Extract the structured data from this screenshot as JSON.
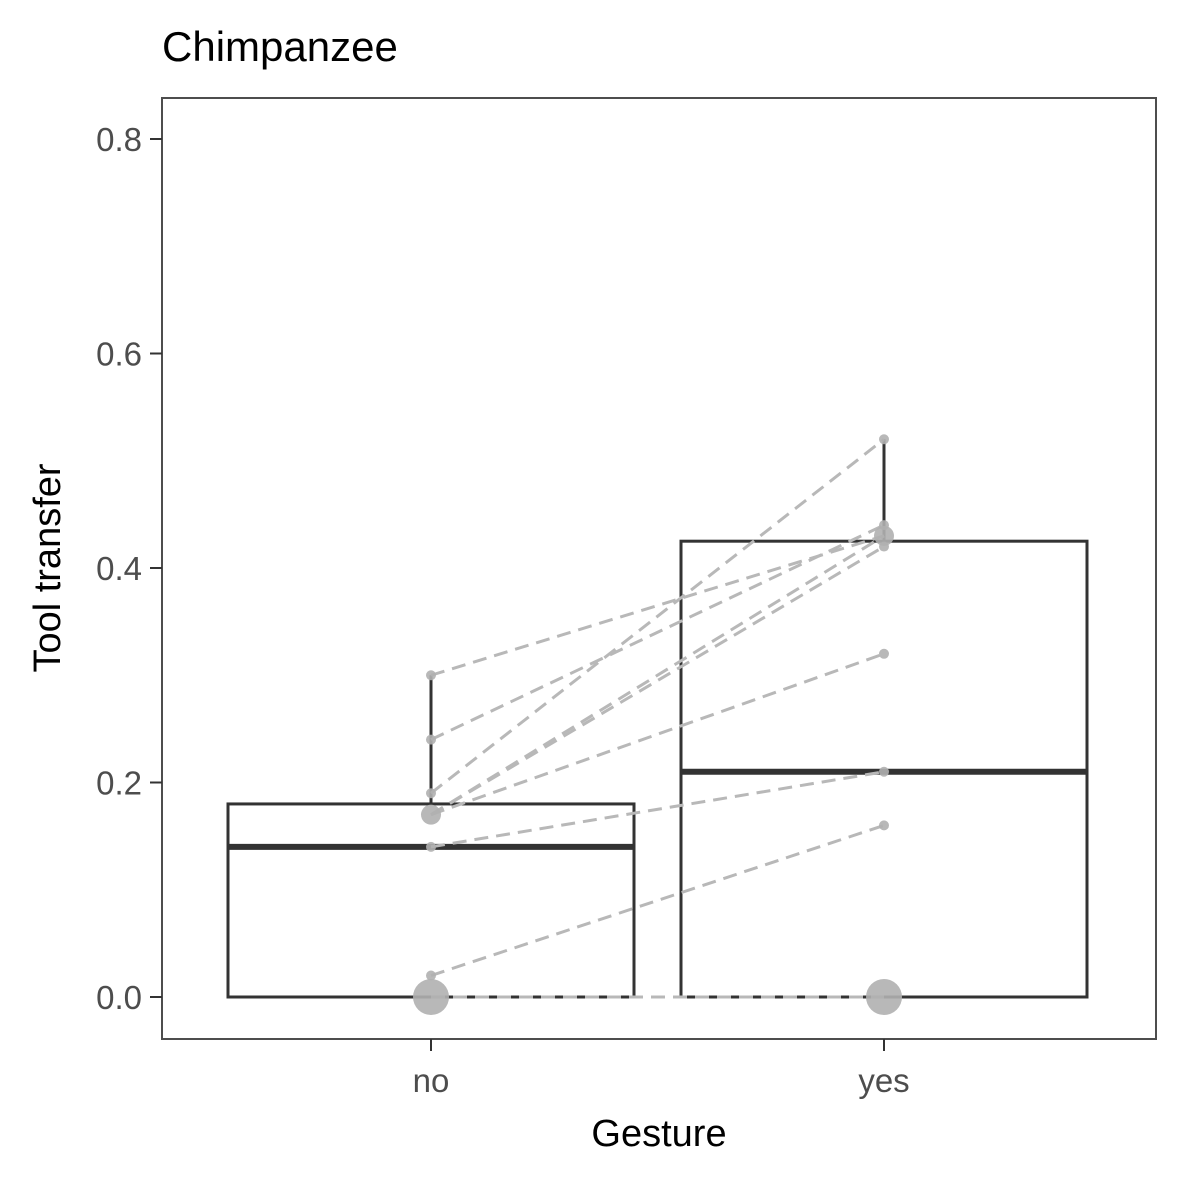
{
  "chart_data": {
    "type": "box",
    "title": "Chimpanzee",
    "xlabel": "Gesture",
    "ylabel": "Tool transfer",
    "categories": [
      "no",
      "yes"
    ],
    "ylim": [
      -0.04,
      0.84
    ],
    "yticks": [
      0.0,
      0.2,
      0.4,
      0.6,
      0.8
    ],
    "ytick_labels": [
      "0.0",
      "0.2",
      "0.4",
      "0.6",
      "0.8"
    ],
    "boxes": [
      {
        "category": "no",
        "whisker_low": 0.0,
        "q1": 0.0,
        "median": 0.14,
        "q3": 0.18,
        "whisker_high": 0.3
      },
      {
        "category": "yes",
        "whisker_low": 0.0,
        "q1": 0.0,
        "median": 0.21,
        "q3": 0.425,
        "whisker_high": 0.52
      }
    ],
    "paired_points": [
      {
        "no": 0.3,
        "yes": 0.43
      },
      {
        "no": 0.24,
        "yes": 0.44
      },
      {
        "no": 0.19,
        "yes": 0.52
      },
      {
        "no": 0.17,
        "yes": 0.42
      },
      {
        "no": 0.17,
        "yes": 0.43
      },
      {
        "no": 0.17,
        "yes": 0.32
      },
      {
        "no": 0.14,
        "yes": 0.21
      },
      {
        "no": 0.02,
        "yes": 0.16
      },
      {
        "no": 0.0,
        "yes": 0.0
      },
      {
        "no": 0.0,
        "yes": 0.0
      },
      {
        "no": 0.0,
        "yes": 0.0
      },
      {
        "no": 0.0,
        "yes": 0.0
      }
    ],
    "grid": false,
    "colors": {
      "box": "#333333",
      "points": "#b0b0b0",
      "lines": "#b8b8b8",
      "panel_border": "#4d4d4d"
    }
  }
}
